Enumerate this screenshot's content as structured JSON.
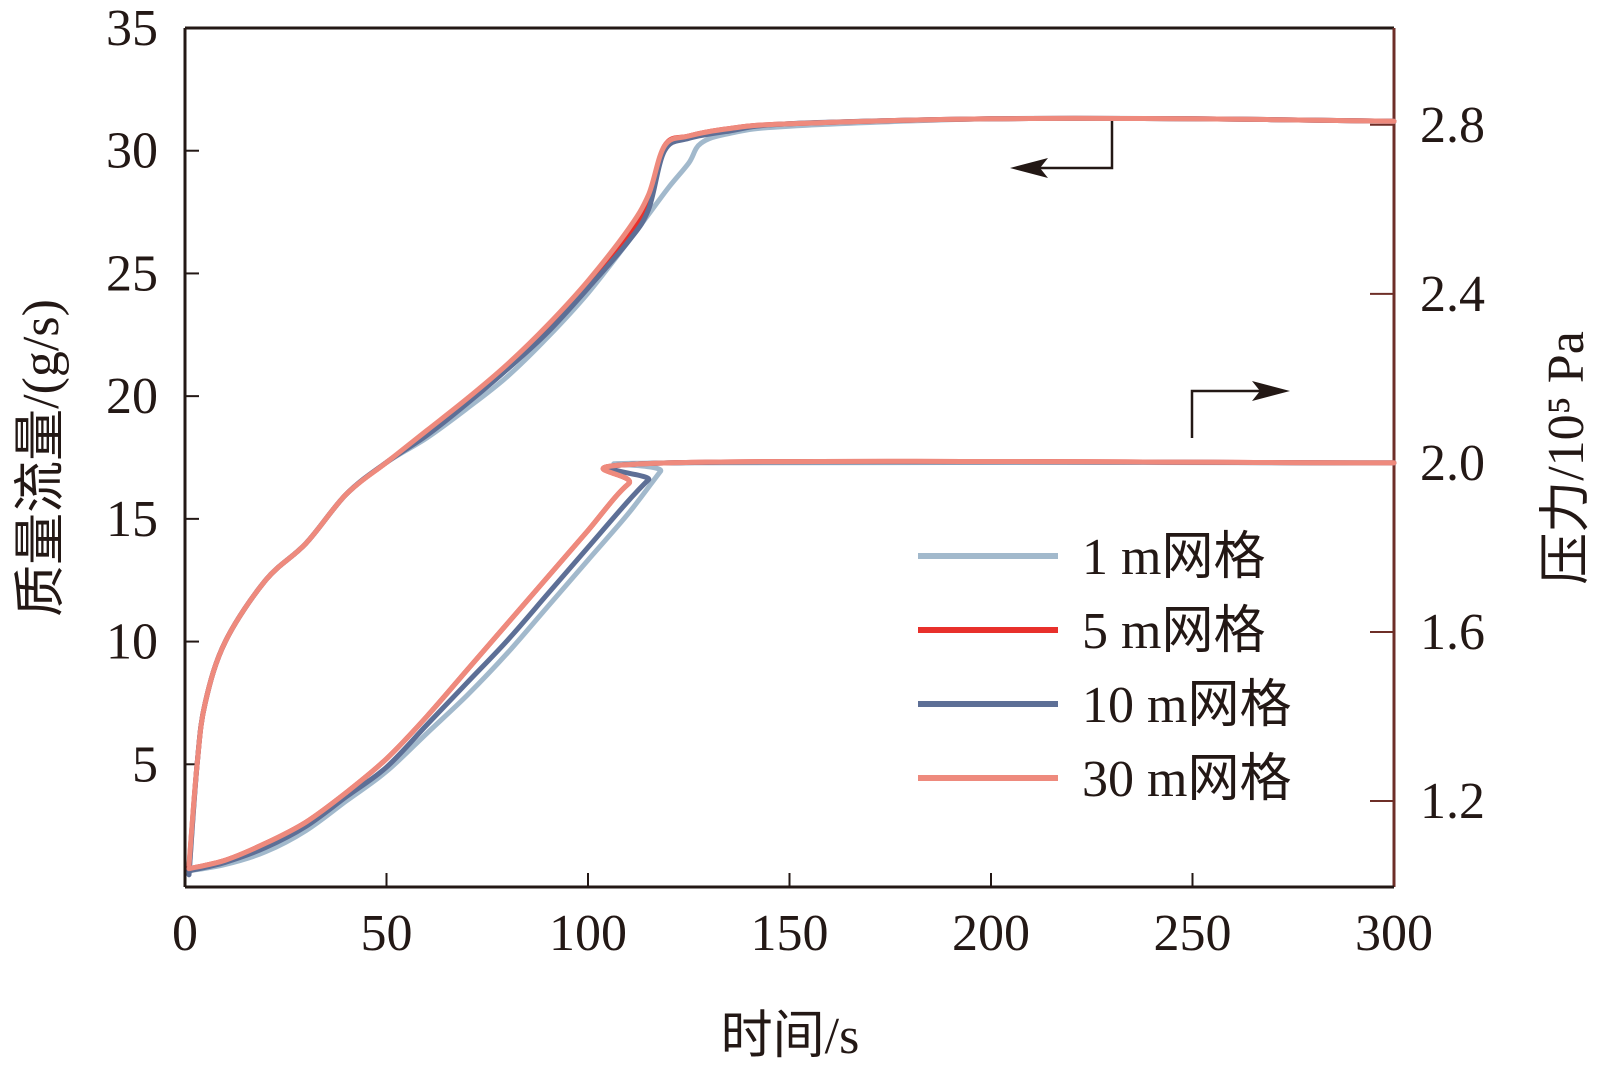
{
  "chart_data": {
    "type": "line",
    "xlabel": "时间/s",
    "ylabel_left": "质量流量/(g/s)",
    "ylabel_right": "压力/10⁵ Pa",
    "xlim": [
      0,
      300
    ],
    "ylim_left": [
      0,
      35
    ],
    "ylim_right": [
      0.9966,
      3.0289
    ],
    "x_ticks": [
      "0",
      "50",
      "100",
      "150",
      "200",
      "250",
      "300"
    ],
    "y_left_ticks": [
      "5",
      "10",
      "15",
      "20",
      "25",
      "30",
      "35"
    ],
    "y_right_ticks": [
      "1.2",
      "1.6",
      "2.0",
      "2.4",
      "2.8"
    ],
    "grid": false,
    "legend_position": "bottom-right",
    "arrows": [
      {
        "curve": "mass_flow",
        "points_to": "left"
      },
      {
        "curve": "pressure",
        "points_to": "right"
      }
    ],
    "series": [
      {
        "name": "1 m网格",
        "color": "#a2b9cc",
        "mass_flow": [
          [
            1,
            0.5
          ],
          [
            3,
            5
          ],
          [
            5,
            7.5
          ],
          [
            10,
            10
          ],
          [
            20,
            12.5
          ],
          [
            30,
            14
          ],
          [
            40,
            16
          ],
          [
            50,
            17.3
          ],
          [
            60,
            18.3
          ],
          [
            70,
            19.5
          ],
          [
            80,
            20.8
          ],
          [
            90,
            22.4
          ],
          [
            100,
            24.2
          ],
          [
            110,
            26.3
          ],
          [
            115,
            27.4
          ],
          [
            120,
            28.5
          ],
          [
            125,
            29.5
          ],
          [
            128,
            30.3
          ],
          [
            135,
            30.7
          ],
          [
            150,
            31
          ],
          [
            200,
            31.3
          ],
          [
            250,
            31.3
          ],
          [
            300,
            31.2
          ]
        ],
        "pressure": [
          [
            1,
            1.035
          ],
          [
            10,
            1.05
          ],
          [
            20,
            1.08
          ],
          [
            30,
            1.13
          ],
          [
            40,
            1.2
          ],
          [
            50,
            1.27
          ],
          [
            60,
            1.36
          ],
          [
            70,
            1.45
          ],
          [
            80,
            1.55
          ],
          [
            90,
            1.66
          ],
          [
            100,
            1.77
          ],
          [
            110,
            1.88
          ],
          [
            118,
            1.98
          ],
          [
            120,
            2.0
          ],
          [
            300,
            2.0
          ]
        ]
      },
      {
        "name": "5 m网格",
        "color": "#e8302b",
        "mass_flow": [
          [
            1,
            0.8
          ],
          [
            3,
            5
          ],
          [
            5,
            7.5
          ],
          [
            10,
            10
          ],
          [
            20,
            12.5
          ],
          [
            30,
            14
          ],
          [
            40,
            16
          ],
          [
            50,
            17.3
          ],
          [
            60,
            18.5
          ],
          [
            70,
            19.8
          ],
          [
            80,
            21.2
          ],
          [
            90,
            22.8
          ],
          [
            100,
            24.6
          ],
          [
            110,
            26.6
          ],
          [
            115,
            27.9
          ],
          [
            119,
            30.2
          ],
          [
            125,
            30.6
          ],
          [
            135,
            30.9
          ],
          [
            150,
            31.1
          ],
          [
            200,
            31.3
          ],
          [
            250,
            31.3
          ],
          [
            300,
            31.2
          ]
        ],
        "pressure": [
          [
            1,
            1.04
          ],
          [
            10,
            1.06
          ],
          [
            20,
            1.1
          ],
          [
            30,
            1.15
          ],
          [
            40,
            1.22
          ],
          [
            50,
            1.3
          ],
          [
            60,
            1.4
          ],
          [
            70,
            1.51
          ],
          [
            80,
            1.62
          ],
          [
            90,
            1.73
          ],
          [
            100,
            1.84
          ],
          [
            110,
            1.95
          ],
          [
            120,
            2.0
          ],
          [
            300,
            2.0
          ]
        ]
      },
      {
        "name": "10 m网格",
        "color": "#5d6f96",
        "mass_flow": [
          [
            1,
            0.5
          ],
          [
            3,
            5
          ],
          [
            5,
            7.5
          ],
          [
            10,
            10
          ],
          [
            20,
            12.5
          ],
          [
            30,
            14
          ],
          [
            40,
            16
          ],
          [
            50,
            17.3
          ],
          [
            60,
            18.4
          ],
          [
            70,
            19.7
          ],
          [
            80,
            21.1
          ],
          [
            90,
            22.6
          ],
          [
            100,
            24.4
          ],
          [
            110,
            26.3
          ],
          [
            115,
            27.6
          ],
          [
            119,
            30
          ],
          [
            125,
            30.5
          ],
          [
            135,
            30.8
          ],
          [
            150,
            31.1
          ],
          [
            200,
            31.3
          ],
          [
            250,
            31.3
          ],
          [
            300,
            31.2
          ]
        ],
        "pressure": [
          [
            1,
            1.035
          ],
          [
            10,
            1.055
          ],
          [
            20,
            1.09
          ],
          [
            30,
            1.14
          ],
          [
            40,
            1.21
          ],
          [
            50,
            1.28
          ],
          [
            60,
            1.38
          ],
          [
            70,
            1.48
          ],
          [
            80,
            1.58
          ],
          [
            90,
            1.69
          ],
          [
            100,
            1.8
          ],
          [
            110,
            1.91
          ],
          [
            115,
            1.96
          ],
          [
            120,
            2.0
          ],
          [
            300,
            2.0
          ]
        ]
      },
      {
        "name": "30 m网格",
        "color": "#ee8a7d",
        "mass_flow": [
          [
            1,
            0.9
          ],
          [
            3,
            5
          ],
          [
            5,
            7.5
          ],
          [
            10,
            10
          ],
          [
            20,
            12.5
          ],
          [
            30,
            14
          ],
          [
            40,
            16
          ],
          [
            50,
            17.3
          ],
          [
            60,
            18.6
          ],
          [
            70,
            19.9
          ],
          [
            80,
            21.3
          ],
          [
            90,
            22.9
          ],
          [
            100,
            24.7
          ],
          [
            110,
            26.8
          ],
          [
            115,
            28.2
          ],
          [
            119,
            30.2
          ],
          [
            125,
            30.6
          ],
          [
            135,
            30.9
          ],
          [
            150,
            31.1
          ],
          [
            200,
            31.3
          ],
          [
            250,
            31.3
          ],
          [
            300,
            31.2
          ]
        ],
        "pressure": [
          [
            1,
            1.04
          ],
          [
            10,
            1.06
          ],
          [
            20,
            1.1
          ],
          [
            30,
            1.15
          ],
          [
            40,
            1.22
          ],
          [
            50,
            1.3
          ],
          [
            60,
            1.4
          ],
          [
            70,
            1.51
          ],
          [
            80,
            1.62
          ],
          [
            90,
            1.73
          ],
          [
            100,
            1.84
          ],
          [
            110,
            1.95
          ],
          [
            120,
            2.0
          ],
          [
            300,
            2.0
          ]
        ]
      }
    ]
  }
}
